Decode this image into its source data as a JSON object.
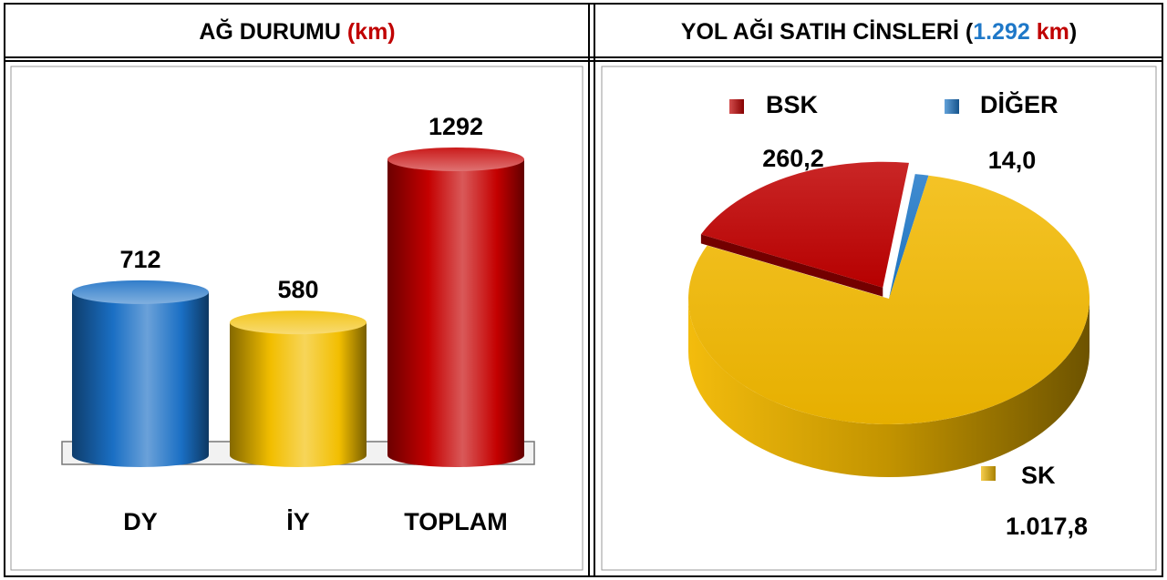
{
  "chart_data": [
    {
      "type": "bar",
      "title_parts": [
        {
          "text": "AĞ DURUMU ",
          "color": "#000000"
        },
        {
          "text": "(km)",
          "color": "#c00000"
        }
      ],
      "categories": [
        "DY",
        "İY",
        "TOPLAM"
      ],
      "values": [
        712,
        580,
        1292
      ],
      "colors": [
        "#1a6fc4",
        "#f2be00",
        "#c40000"
      ]
    },
    {
      "type": "pie",
      "title_parts": [
        {
          "text": "YOL AĞI SATIH CİNSLERİ (",
          "color": "#000000"
        },
        {
          "text": "1.292",
          "color": "#1f78c8"
        },
        {
          "text": " km",
          "color": "#c00000"
        },
        {
          "text": ")",
          "color": "#000000"
        }
      ],
      "categories": [
        "BSK",
        "DİĞER",
        "SK"
      ],
      "values": [
        260.2,
        14.0,
        1017.8
      ],
      "value_labels": [
        "260,2",
        "14,0",
        "1.017,8"
      ],
      "colors": [
        "#c00000",
        "#1f78c8",
        "#f2b800"
      ]
    }
  ]
}
